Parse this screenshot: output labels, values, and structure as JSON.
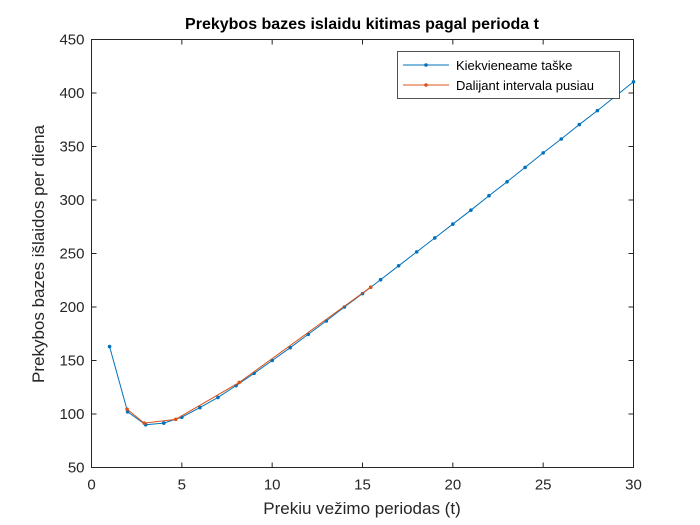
{
  "chart_data": {
    "type": "line",
    "title": "Prekybos bazes islaidu kitimas pagal perioda t",
    "xlabel": "Prekiu vežimo periodas (t)",
    "ylabel": "Prekybos bazes išlaidos per diena",
    "xlim": [
      0,
      30
    ],
    "ylim": [
      50,
      450
    ],
    "xticks": [
      0,
      5,
      10,
      15,
      20,
      25,
      30
    ],
    "yticks": [
      50,
      100,
      150,
      200,
      250,
      300,
      350,
      400,
      450
    ],
    "grid": false,
    "legend_position": "top-right",
    "series": [
      {
        "name": "Kiekvieneame taške",
        "color": "#0072BD",
        "x": [
          1,
          2,
          3,
          4,
          5,
          6,
          7,
          8,
          9,
          10,
          11,
          12,
          13,
          14,
          15,
          16,
          17,
          18,
          19,
          20,
          21,
          22,
          23,
          24,
          25,
          26,
          27,
          28,
          29,
          30
        ],
        "y": [
          163,
          102,
          90,
          91.5,
          97,
          106,
          115.5,
          126.5,
          138,
          150,
          162,
          174.5,
          187,
          200,
          212.5,
          225.5,
          238.5,
          251.5,
          264.5,
          277.5,
          290.5,
          304,
          317,
          330.5,
          344,
          357,
          370.5,
          383.5,
          397,
          410.5
        ]
      },
      {
        "name": "Dalijant intervala pusiau",
        "color": "#D95319",
        "x": [
          1.969,
          2.914,
          4.663,
          8.178,
          15.453
        ],
        "y": [
          104.5,
          91.5,
          95,
          129.5,
          218.5
        ]
      }
    ]
  }
}
